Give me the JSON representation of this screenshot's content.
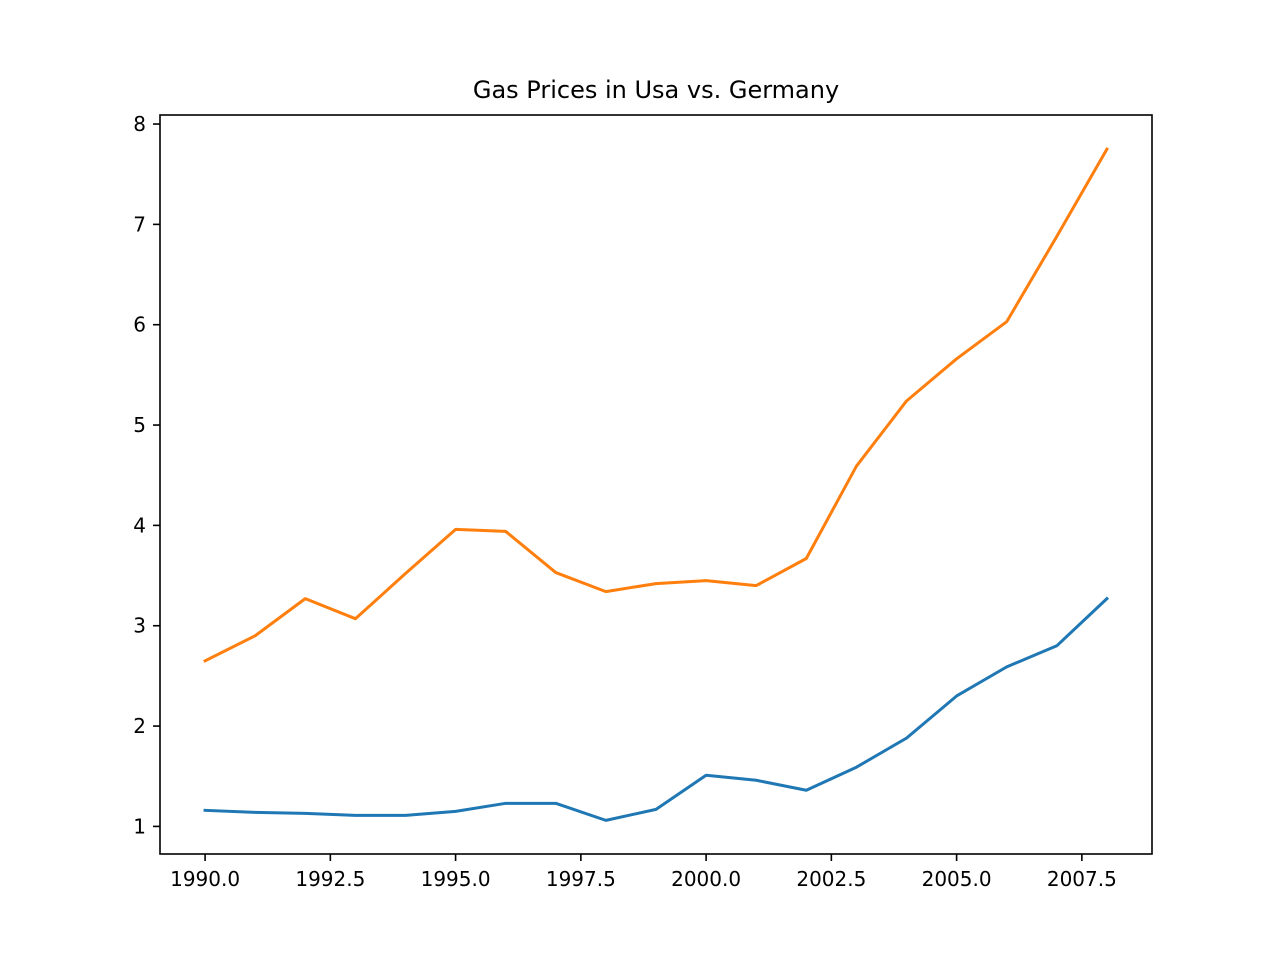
{
  "chart_data": {
    "type": "line",
    "title": "Gas Prices in Usa vs. Germany",
    "xlabel": "",
    "ylabel": "",
    "x": [
      1990,
      1991,
      1992,
      1993,
      1994,
      1995,
      1996,
      1997,
      1998,
      1999,
      2000,
      2001,
      2002,
      2003,
      2004,
      2005,
      2006,
      2007,
      2008
    ],
    "series": [
      {
        "color": "#1f77b4",
        "values": [
          1.16,
          1.14,
          1.13,
          1.11,
          1.11,
          1.15,
          1.23,
          1.23,
          1.06,
          1.17,
          1.51,
          1.46,
          1.36,
          1.59,
          1.88,
          2.3,
          2.59,
          2.8,
          3.27
        ]
      },
      {
        "color": "#ff7f0e",
        "values": [
          2.65,
          2.9,
          3.27,
          3.07,
          3.52,
          3.96,
          3.94,
          3.53,
          3.34,
          3.42,
          3.45,
          3.4,
          3.67,
          4.59,
          5.24,
          5.66,
          6.03,
          6.88,
          7.75
        ]
      }
    ],
    "xlim": [
      1989.1,
      2008.9
    ],
    "ylim": [
      0.725,
      8.09
    ],
    "x_ticks": [
      1990,
      1992.5,
      1995,
      1997.5,
      2000,
      2002.5,
      2005,
      2007.5
    ],
    "x_tick_labels": [
      "1990.0",
      "1992.5",
      "1995.0",
      "1997.5",
      "2000.0",
      "2002.5",
      "2005.0",
      "2007.5"
    ],
    "y_ticks": [
      1,
      2,
      3,
      4,
      5,
      6,
      7,
      8
    ],
    "y_tick_labels": [
      "1",
      "2",
      "3",
      "4",
      "5",
      "6",
      "7",
      "8"
    ],
    "grid": false,
    "legend": "none"
  }
}
